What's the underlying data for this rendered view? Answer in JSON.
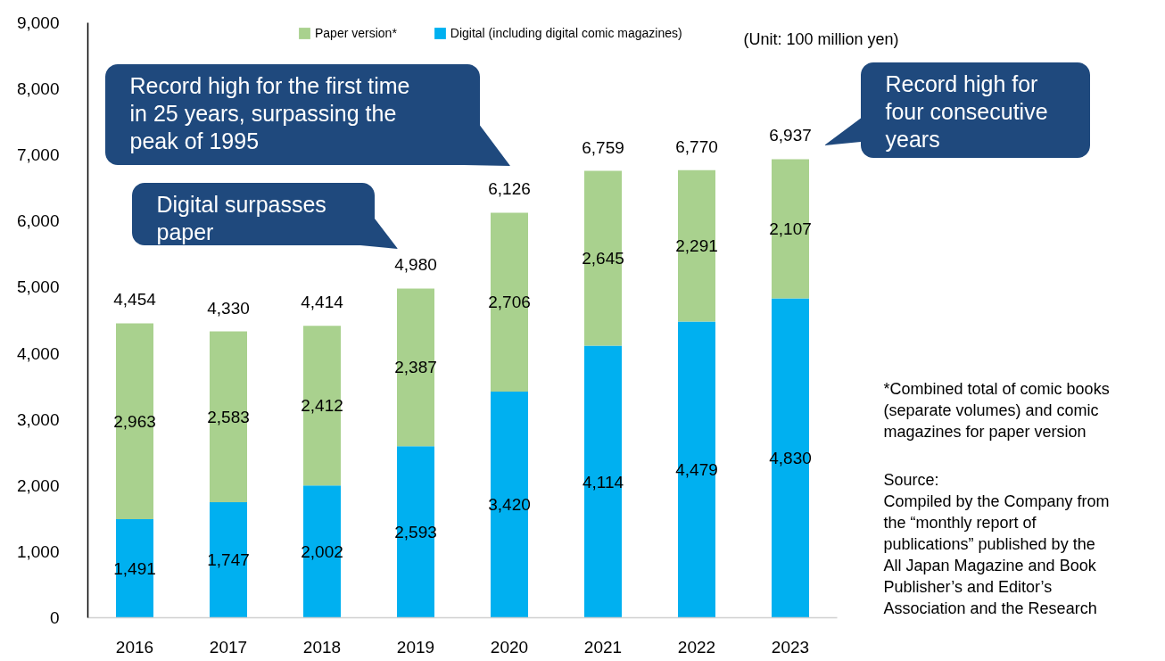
{
  "chart_data": {
    "type": "bar",
    "categories": [
      "2016",
      "2017",
      "2018",
      "2019",
      "2020",
      "2021",
      "2022",
      "2023"
    ],
    "series": [
      {
        "name": "Digital (including digital comic magazines)",
        "color": "#00b0f0",
        "values": [
          1491,
          1747,
          2002,
          2593,
          3420,
          4114,
          4479,
          4830
        ],
        "value_labels": [
          "1,491",
          "1,747",
          "2,002",
          "2,593",
          "3,420",
          "4,114",
          "4,479",
          "4,830"
        ]
      },
      {
        "name": "Paper version*",
        "color": "#a9d18e",
        "values": [
          2963,
          2583,
          2412,
          2387,
          2706,
          2645,
          2291,
          2107
        ],
        "value_labels": [
          "2,963",
          "2,583",
          "2,412",
          "2,387",
          "2,706",
          "2,645",
          "2,291",
          "2,107"
        ]
      }
    ],
    "stacked": true,
    "ylim": [
      0,
      9000
    ],
    "yticks": [
      0,
      {
        "value": 1000,
        "label": "1,000"
      },
      {
        "value": 2000,
        "label": "2,000"
      },
      {
        "value": 3000,
        "label": "3,000"
      },
      {
        "value": 4000,
        "label": "4,000"
      },
      {
        "value": 5000,
        "label": "5,000"
      },
      {
        "value": 6000,
        "label": "6,000"
      },
      {
        "value": 7000,
        "label": "7,000"
      },
      {
        "value": 8000,
        "label": "8,000"
      },
      {
        "value": 9000,
        "label": "9,000"
      }
    ],
    "totals": [
      "4,454",
      "4,330",
      "4,414",
      "4,980",
      "6,126",
      "6,759",
      "6,770",
      "6,937"
    ],
    "legend": "top",
    "annotations": [
      "(Unit: 100 million yen)",
      "Digital surpasses paper",
      "Record high for the first time in 25 years, surpassing the peak of 1995",
      "Record high for four consecutive years",
      "*Combined total of comic books (separate volumes) and comic magazines for paper version",
      "Source:\nCompiled by the Company from the “monthly report of publications” published by the All Japan Magazine and Book Publisher’s and Editor’s Association and the Research"
    ]
  }
}
